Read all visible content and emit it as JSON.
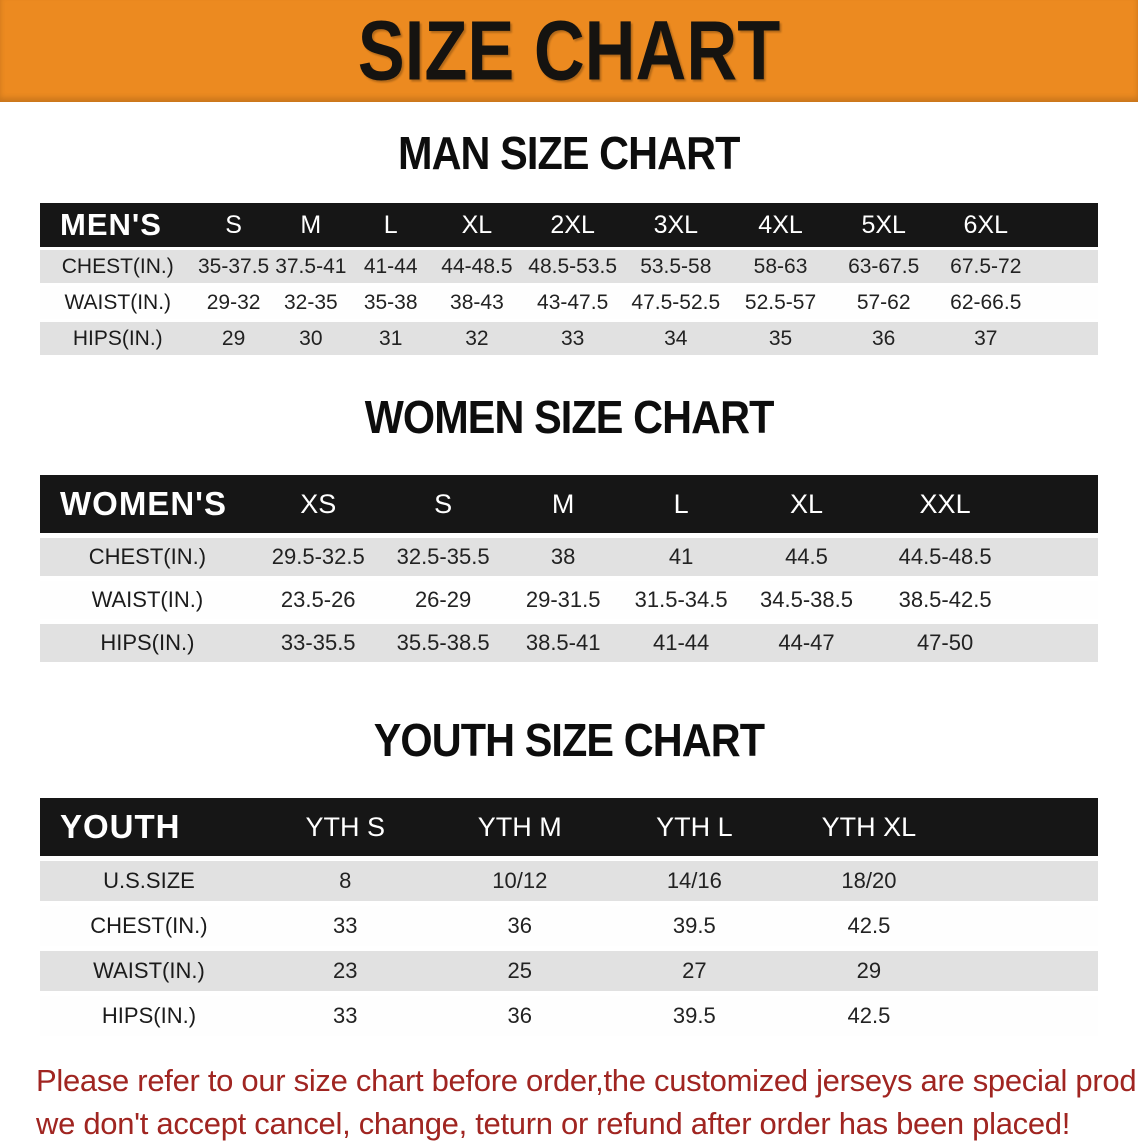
{
  "banner": {
    "title": "SIZE CHART",
    "bg_color": "#ec8a20",
    "text_color": "#151310"
  },
  "sections": [
    {
      "id": "men",
      "title": "MAN SIZE CHART",
      "table": {
        "header_label": "MEN'S",
        "columns": [
          "S",
          "M",
          "L",
          "XL",
          "2XL",
          "3XL",
          "4XL",
          "5XL",
          "6XL"
        ],
        "rows": [
          {
            "label": "CHEST(IN.)",
            "shaded": true,
            "values": [
              "35-37.5",
              "37.5-41",
              "41-44",
              "44-48.5",
              "48.5-53.5",
              "53.5-58",
              "58-63",
              "63-67.5",
              "67.5-72"
            ]
          },
          {
            "label": "WAIST(IN.)",
            "shaded": false,
            "values": [
              "29-32",
              "32-35",
              "35-38",
              "38-43",
              "43-47.5",
              "47.5-52.5",
              "52.5-57",
              "57-62",
              "62-66.5"
            ]
          },
          {
            "label": "HIPS(IN.)",
            "shaded": true,
            "values": [
              "29",
              "30",
              "31",
              "32",
              "33",
              "34",
              "35",
              "36",
              "37"
            ]
          }
        ]
      }
    },
    {
      "id": "women",
      "title": "WOMEN SIZE CHART",
      "table": {
        "header_label": "WOMEN'S",
        "columns": [
          "XS",
          "S",
          "M",
          "L",
          "XL",
          "XXL"
        ],
        "rows": [
          {
            "label": "CHEST(IN.)",
            "shaded": true,
            "values": [
              "29.5-32.5",
              "32.5-35.5",
              "38",
              "41",
              "44.5",
              "44.5-48.5"
            ]
          },
          {
            "label": "WAIST(IN.)",
            "shaded": false,
            "values": [
              "23.5-26",
              "26-29",
              "29-31.5",
              "31.5-34.5",
              "34.5-38.5",
              "38.5-42.5"
            ]
          },
          {
            "label": "HIPS(IN.)",
            "shaded": true,
            "values": [
              "33-35.5",
              "35.5-38.5",
              "38.5-41",
              "41-44",
              "44-47",
              "47-50"
            ]
          }
        ]
      }
    },
    {
      "id": "youth",
      "title": "YOUTH SIZE CHART",
      "table": {
        "header_label": "YOUTH",
        "columns": [
          "YTH S",
          "YTH M",
          "YTH L",
          "YTH XL"
        ],
        "rows": [
          {
            "label": "U.S.SIZE",
            "shaded": true,
            "values": [
              "8",
              "10/12",
              "14/16",
              "18/20"
            ]
          },
          {
            "label": "CHEST(IN.)",
            "shaded": false,
            "values": [
              "33",
              "36",
              "39.5",
              "42.5"
            ]
          },
          {
            "label": "WAIST(IN.)",
            "shaded": true,
            "values": [
              "23",
              "25",
              "27",
              "29"
            ]
          },
          {
            "label": "HIPS(IN.)",
            "shaded": false,
            "values": [
              "33",
              "36",
              "39.5",
              "42.5"
            ]
          }
        ]
      }
    }
  ],
  "disclaimer": {
    "line1": "Please refer to our size chart before order,the customized jerseys are special products,",
    "line2": "we don't accept cancel, change, teturn or refund after order has been placed!",
    "color": "#a02521"
  }
}
